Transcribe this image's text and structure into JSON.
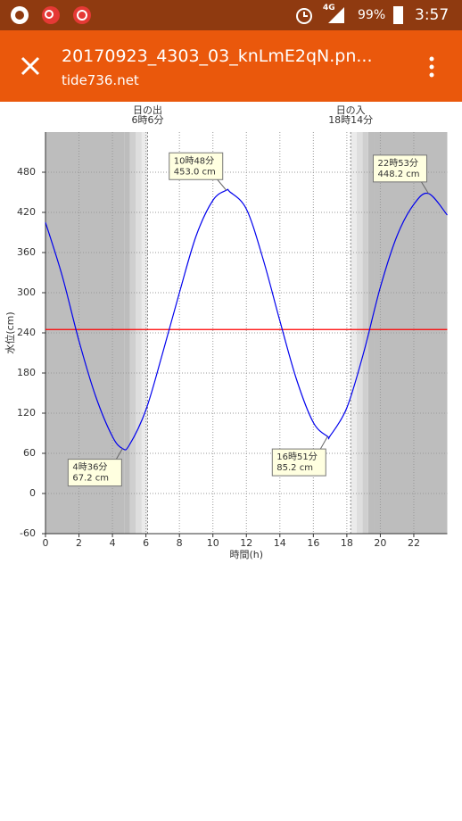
{
  "status_bar": {
    "network": "4G",
    "battery": "99%",
    "time": "3:57"
  },
  "app_bar": {
    "title": "20170923_4303_03_knLmE2qN.pn...",
    "subtitle": "tide736.net"
  },
  "chart_data": {
    "type": "line",
    "x_label": "時間(h)",
    "y_label": "水位(cm)",
    "xlim": [
      0,
      24
    ],
    "xticks": [
      0,
      2,
      4,
      6,
      8,
      10,
      12,
      14,
      16,
      18,
      20,
      22
    ],
    "ylim": [
      -60,
      540
    ],
    "yticks": [
      -60,
      0,
      60,
      120,
      180,
      240,
      300,
      360,
      420,
      480
    ],
    "grid": true,
    "series": [
      {
        "color": "#0000ee",
        "x": [
          0,
          1,
          2,
          3,
          4,
          4.6,
          5,
          6,
          7,
          8,
          9,
          10,
          10.8,
          11,
          12,
          13,
          14,
          15,
          16,
          16.85,
          17,
          18,
          19,
          20,
          21,
          22,
          22.88,
          24
        ],
        "values": [
          405,
          325,
          228,
          145,
          85,
          67.2,
          72,
          125,
          210,
          300,
          385,
          438,
          453,
          451,
          425,
          350,
          258,
          170,
          106,
          85.2,
          86,
          128,
          210,
          308,
          385,
          432,
          448.2,
          416
        ]
      }
    ],
    "reference_line": {
      "value": 245,
      "color": "#ff0000"
    },
    "annotations": [
      {
        "x": 4.6,
        "y": 67.2,
        "time": "4時36分",
        "label": "67.2 cm"
      },
      {
        "x": 10.8,
        "y": 453,
        "time": "10時48分",
        "label": "453.0 cm"
      },
      {
        "x": 16.85,
        "y": 85.2,
        "time": "16時51分",
        "label": "85.2 cm"
      },
      {
        "x": 22.88,
        "y": 448.2,
        "time": "22時53分",
        "label": "448.2 cm"
      }
    ],
    "sun_events": [
      {
        "x": 6.1,
        "label": "日の出",
        "time": "6時6分"
      },
      {
        "x": 18.23,
        "label": "日の入",
        "time": "18時14分"
      }
    ]
  }
}
